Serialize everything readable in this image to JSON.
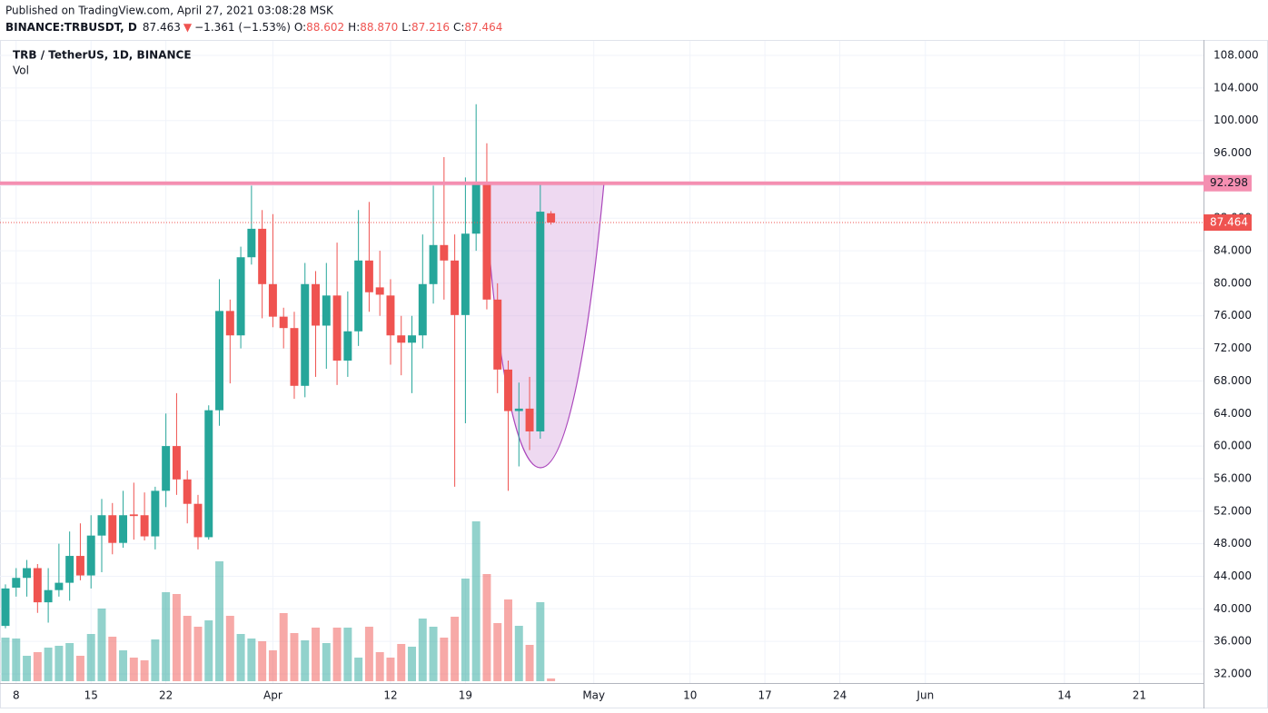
{
  "header": {
    "published": "Published on TradingView.com, April 27, 2021 03:08:28 MSK",
    "symbol": "BINANCE:TRBUSDT, D",
    "last": "87.463",
    "arrow": "▼",
    "change": "−1.361 (−1.53%)",
    "o_label": "O:",
    "o": "88.602",
    "h_label": "H:",
    "h": "88.870",
    "l_label": "L:",
    "l": "87.216",
    "c_label": "C:",
    "c": "87.464"
  },
  "chart_data": {
    "type": "candlestick",
    "title": "TRB / TetherUS, 1D, BINANCE",
    "volume_label": "Vol",
    "x": [
      "2021-03-07",
      "2021-03-08",
      "2021-03-09",
      "2021-03-10",
      "2021-03-11",
      "2021-03-12",
      "2021-03-13",
      "2021-03-14",
      "2021-03-15",
      "2021-03-16",
      "2021-03-17",
      "2021-03-18",
      "2021-03-19",
      "2021-03-20",
      "2021-03-21",
      "2021-03-22",
      "2021-03-23",
      "2021-03-24",
      "2021-03-25",
      "2021-03-26",
      "2021-03-27",
      "2021-03-28",
      "2021-03-29",
      "2021-03-30",
      "2021-03-31",
      "2021-04-01",
      "2021-04-02",
      "2021-04-03",
      "2021-04-04",
      "2021-04-05",
      "2021-04-06",
      "2021-04-07",
      "2021-04-08",
      "2021-04-09",
      "2021-04-10",
      "2021-04-11",
      "2021-04-12",
      "2021-04-13",
      "2021-04-14",
      "2021-04-15",
      "2021-04-16",
      "2021-04-17",
      "2021-04-18",
      "2021-04-19",
      "2021-04-20",
      "2021-04-21",
      "2021-04-22",
      "2021-04-23",
      "2021-04-24",
      "2021-04-25",
      "2021-04-26",
      "2021-04-27"
    ],
    "open": [
      37.9,
      42.6,
      43.8,
      45,
      40.8,
      42.3,
      43.2,
      46.5,
      44.1,
      49,
      51.5,
      48.1,
      51.6,
      51.5,
      48.9,
      54.5,
      60,
      55.9,
      52.9,
      48.8,
      64.4,
      76.6,
      73.6,
      83.2,
      86.7,
      79.9,
      75.9,
      74.5,
      67.4,
      79.9,
      74.8,
      78.5,
      70.5,
      74.1,
      82.8,
      79.5,
      78.5,
      73.6,
      72.7,
      73.6,
      79.9,
      84.7,
      82.8,
      76.1,
      86.1,
      92.4,
      78,
      69.4,
      64.3,
      64.6,
      61.8,
      88.602
    ],
    "high": [
      43,
      45,
      46,
      45.5,
      45,
      48,
      49.5,
      50.5,
      51.5,
      53.5,
      53,
      54.5,
      55.5,
      54.3,
      55,
      64,
      66.5,
      57,
      54,
      65,
      80.5,
      78,
      84.5,
      92,
      89,
      88.5,
      77,
      76.5,
      82.5,
      81.5,
      82.5,
      85,
      79,
      89,
      90,
      84,
      80.5,
      76,
      76,
      86,
      92,
      95.5,
      86,
      93,
      102,
      97.2,
      80,
      70.5,
      67.8,
      68.5,
      92.3,
      88.87
    ],
    "low": [
      37.6,
      41.5,
      41.5,
      39.5,
      38.3,
      41.5,
      41,
      43.5,
      42.5,
      44.5,
      46.7,
      47.5,
      48.5,
      48.4,
      47.3,
      52.5,
      54,
      50.5,
      47.3,
      48.5,
      62.5,
      67.7,
      72,
      82.3,
      75.7,
      74.6,
      72,
      65.8,
      66,
      68.5,
      69.5,
      67.5,
      68.5,
      72.3,
      76.5,
      76,
      70,
      68.7,
      66.5,
      72,
      77.5,
      78,
      55,
      62.8,
      84,
      76.8,
      66.5,
      54.5,
      57.5,
      59.5,
      60.9,
      87.216
    ],
    "close": [
      42.5,
      43.8,
      45,
      40.8,
      42.3,
      43.2,
      46.5,
      44.1,
      49,
      51.5,
      48.1,
      51.5,
      51.4,
      48.9,
      54.5,
      60,
      55.9,
      52.9,
      48.8,
      64.4,
      76.6,
      73.6,
      83.2,
      86.7,
      79.9,
      75.9,
      74.5,
      67.4,
      79.9,
      74.8,
      78.5,
      70.5,
      74.1,
      82.8,
      78.9,
      78.6,
      73.6,
      72.7,
      73.6,
      79.9,
      84.7,
      82.8,
      76.1,
      86.1,
      92.4,
      78,
      69.4,
      64.3,
      64.6,
      61.8,
      88.8,
      87.464
    ],
    "volume": [
      48,
      47,
      28,
      32,
      37,
      39,
      42,
      28,
      52,
      80,
      49,
      34,
      26,
      23,
      46,
      98,
      96,
      72,
      60,
      67,
      132,
      72,
      52,
      47,
      44,
      34,
      75,
      53,
      45,
      59,
      42,
      59,
      59,
      26,
      60,
      32,
      26,
      41,
      38,
      69,
      60,
      48,
      71,
      113,
      176,
      118,
      64,
      90,
      61,
      40,
      87,
      3
    ],
    "up_color": "#26a69a",
    "down_color": "#ef5350",
    "xlim": [
      "2021-03-07",
      "2021-06-27"
    ],
    "xticks": [
      {
        "value": "2021-03-08",
        "label": "8"
      },
      {
        "value": "2021-03-15",
        "label": "15"
      },
      {
        "value": "2021-03-22",
        "label": "22"
      },
      {
        "value": "2021-04-01",
        "label": "Apr"
      },
      {
        "value": "2021-04-12",
        "label": "12"
      },
      {
        "value": "2021-04-19",
        "label": "19"
      },
      {
        "value": "2021-05-01",
        "label": "May"
      },
      {
        "value": "2021-05-10",
        "label": "10"
      },
      {
        "value": "2021-05-17",
        "label": "17"
      },
      {
        "value": "2021-05-24",
        "label": "24"
      },
      {
        "value": "2021-06-01",
        "label": "Jun"
      },
      {
        "value": "2021-06-14",
        "label": "14"
      },
      {
        "value": "2021-06-21",
        "label": "21"
      }
    ],
    "ylim": [
      30.88,
      109.79
    ],
    "yticks": [
      {
        "value": 32,
        "label": "32.000"
      },
      {
        "value": 36,
        "label": "36.000"
      },
      {
        "value": 40,
        "label": "40.000"
      },
      {
        "value": 44,
        "label": "44.000"
      },
      {
        "value": 48,
        "label": "48.000"
      },
      {
        "value": 52,
        "label": "52.000"
      },
      {
        "value": 56,
        "label": "56.000"
      },
      {
        "value": 60,
        "label": "60.000"
      },
      {
        "value": 64,
        "label": "64.000"
      },
      {
        "value": 68,
        "label": "68.000"
      },
      {
        "value": 72,
        "label": "72.000"
      },
      {
        "value": 76,
        "label": "76.000"
      },
      {
        "value": 80,
        "label": "80.000"
      },
      {
        "value": 84,
        "label": "84.000"
      },
      {
        "value": 88,
        "label": "88.000"
      },
      {
        "value": 92,
        "label": "92.000"
      },
      {
        "value": 96,
        "label": "96.000"
      },
      {
        "value": 100,
        "label": "100.000"
      },
      {
        "value": 104,
        "label": "104.000"
      },
      {
        "value": 108,
        "label": "108.000"
      }
    ],
    "hline": {
      "value": 92.298,
      "color": "#f48fb1"
    },
    "grid": true
  }
}
